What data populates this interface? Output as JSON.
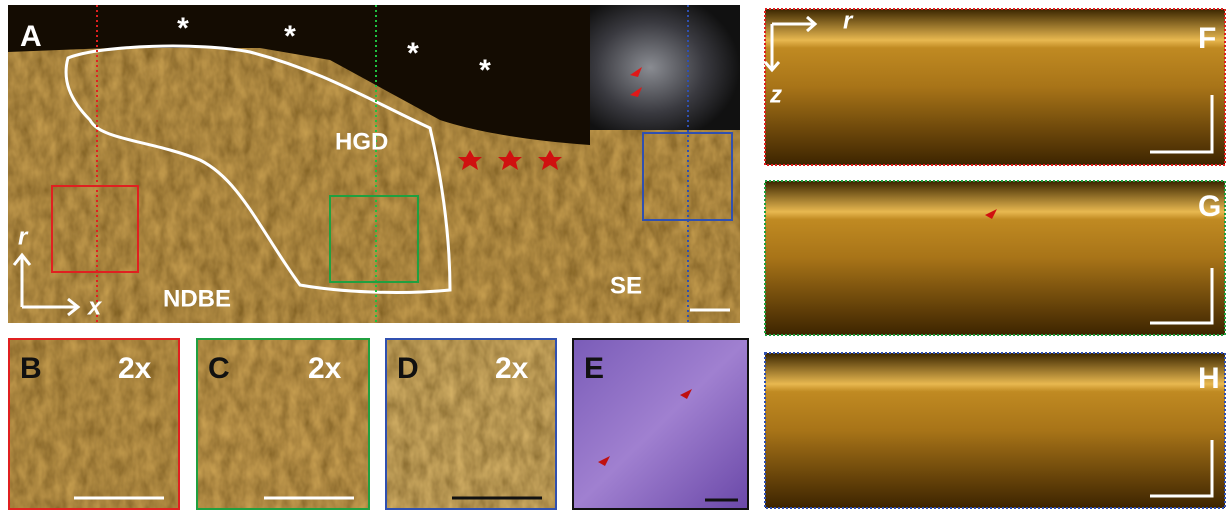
{
  "panel_a": {
    "label": "A",
    "asterisks": [
      "*",
      "*",
      "*",
      "*"
    ],
    "regions": [
      "HGD",
      "NDBE",
      "SE"
    ],
    "axes": [
      "r",
      "x"
    ]
  },
  "panels": [
    {
      "label": "B",
      "zoom": "2x"
    },
    {
      "label": "C",
      "zoom": "2x"
    },
    {
      "label": "D",
      "zoom": "2x"
    },
    {
      "label": "E"
    }
  ],
  "oct_panels": [
    {
      "label": "F",
      "axes": [
        "r",
        "z"
      ]
    },
    {
      "label": "G"
    },
    {
      "label": "H"
    }
  ]
}
